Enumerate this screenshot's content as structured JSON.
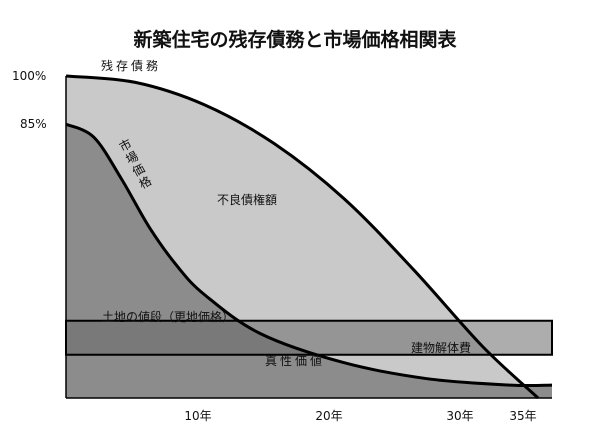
{
  "chart_data": {
    "type": "area",
    "title": "新築住宅の残存債務と市場価格相関表",
    "y_tick_labels": [
      "100%",
      "85%"
    ],
    "y_ticks": [
      100,
      85
    ],
    "x_tick_labels": [
      "10年",
      "20年",
      "30年",
      "35年"
    ],
    "x_ticks": [
      10,
      20,
      30,
      35
    ],
    "xlim": [
      0,
      35
    ],
    "ylim": [
      0,
      100
    ],
    "series": [
      {
        "name": "残存債務",
        "x": [
          0,
          5,
          10,
          15,
          20,
          25,
          30,
          34
        ],
        "y": [
          100,
          98,
          91,
          79,
          62,
          40,
          16,
          0
        ]
      },
      {
        "name": "市場価格",
        "x": [
          0,
          2,
          4,
          6,
          8,
          10,
          14,
          20,
          26,
          32,
          35
        ],
        "y": [
          85,
          81,
          68,
          53,
          41,
          32,
          20,
          11,
          6,
          4,
          4
        ]
      },
      {
        "name": "土地の値段（更地価格）",
        "x": [
          0,
          35
        ],
        "y": [
          24,
          24
        ]
      }
    ],
    "regions": {
      "bad_debt": "不良債権額",
      "true_value": "真性価値",
      "demolition": "建物解体費"
    },
    "colors": {
      "debt_area": "#c9c9c9",
      "market_area": "#8c8c8c",
      "land_band": "#6a6a6a",
      "line": "#000000"
    }
  }
}
